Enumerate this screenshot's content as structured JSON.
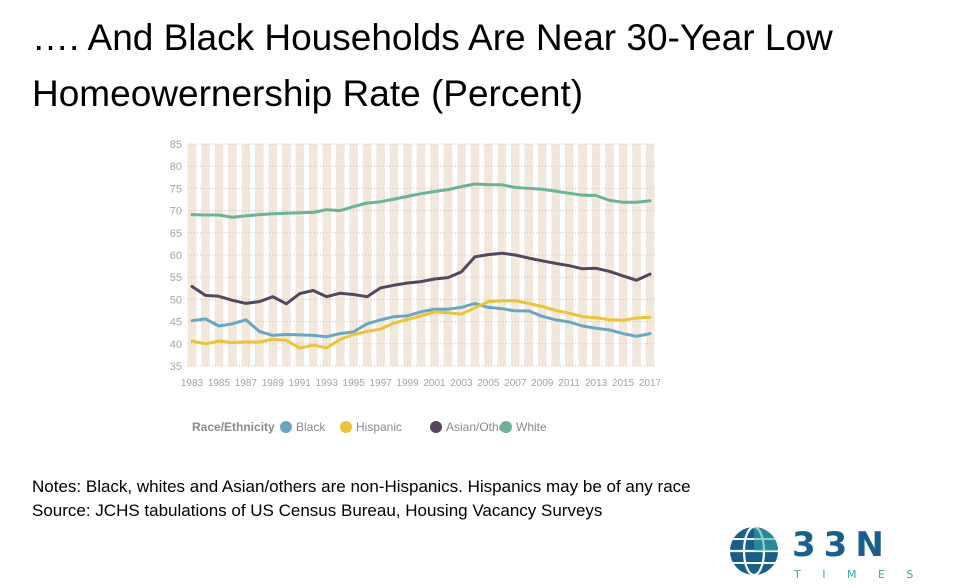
{
  "title": {
    "line1": "…. And Black Households Are Near 30-Year Low",
    "line2": "Homeowernership Rate (Percent)"
  },
  "notes": {
    "line1": "Notes: Black, whites and Asian/others are non-Hispanics. Hispanics may be of any race",
    "line2": "Source: JCHS tabulations of US Census Bureau, Housing Vacancy Surveys"
  },
  "logo": {
    "main": "33N",
    "sub": "T I M E S"
  },
  "colors": {
    "black_series": "#6aa6c3",
    "hispanic_series": "#ecc43a",
    "asian_series": "#54475d",
    "white_series": "#6ab29a",
    "band": "#f1e8db",
    "axis_text": "#a3a3a3",
    "logo_blue": "#1a5e8c",
    "logo_teal": "#36a9a1"
  },
  "chart_data": {
    "type": "line",
    "x": [
      1983,
      1984,
      1985,
      1986,
      1987,
      1988,
      1989,
      1990,
      1991,
      1992,
      1993,
      1994,
      1995,
      1996,
      1997,
      1998,
      1999,
      2000,
      2001,
      2002,
      2003,
      2004,
      2005,
      2006,
      2007,
      2008,
      2009,
      2010,
      2011,
      2012,
      2013,
      2014,
      2015,
      2016,
      2017
    ],
    "xticks": [
      "1983",
      "1985",
      "1987",
      "1989",
      "1991",
      "1993",
      "1995",
      "1997",
      "1999",
      "2001",
      "2003",
      "2005",
      "2007",
      "2009",
      "2011",
      "2013",
      "2015",
      "2017"
    ],
    "ylim": [
      35,
      85
    ],
    "yticks": [
      "35",
      "40",
      "45",
      "50",
      "55",
      "60",
      "65",
      "70",
      "75",
      "80",
      "85"
    ],
    "legend_title": "Race/Ethnicity",
    "series": [
      {
        "name": "Black",
        "color": "#6aa6c3",
        "values": [
          45.2,
          45.6,
          44.0,
          44.5,
          45.4,
          42.8,
          41.9,
          42.1,
          42.0,
          41.9,
          41.6,
          42.3,
          42.7,
          44.5,
          45.4,
          46.1,
          46.3,
          47.2,
          47.8,
          47.8,
          48.2,
          49.1,
          48.2,
          47.9,
          47.4,
          47.4,
          46.2,
          45.4,
          44.9,
          44.0,
          43.5,
          43.1,
          42.3,
          41.7,
          42.3
        ]
      },
      {
        "name": "Hispanic",
        "color": "#ecc43a",
        "values": [
          40.6,
          40.0,
          40.6,
          40.3,
          40.4,
          40.4,
          41.0,
          40.8,
          39.0,
          39.7,
          39.1,
          41.0,
          42.1,
          42.8,
          43.3,
          44.7,
          45.5,
          46.3,
          47.2,
          47.0,
          46.7,
          48.1,
          49.5,
          49.7,
          49.7,
          49.1,
          48.4,
          47.5,
          46.9,
          46.1,
          45.9,
          45.4,
          45.3,
          45.8,
          46.0
        ]
      },
      {
        "name": "Asian/Other",
        "color": "#54475d",
        "values": [
          52.9,
          50.9,
          50.7,
          49.8,
          49.1,
          49.5,
          50.6,
          49.0,
          51.3,
          52.0,
          50.6,
          51.4,
          51.1,
          50.6,
          52.6,
          53.2,
          53.7,
          54.0,
          54.6,
          54.9,
          56.2,
          59.6,
          60.1,
          60.4,
          60.0,
          59.3,
          58.7,
          58.1,
          57.6,
          56.9,
          57.0,
          56.3,
          55.3,
          54.3,
          55.7
        ]
      },
      {
        "name": "White",
        "color": "#6ab29a",
        "values": [
          69.1,
          69.0,
          69.0,
          68.5,
          68.8,
          69.1,
          69.3,
          69.4,
          69.5,
          69.6,
          70.2,
          70.0,
          70.9,
          71.7,
          72.0,
          72.6,
          73.2,
          73.8,
          74.3,
          74.7,
          75.4,
          76.0,
          75.8,
          75.8,
          75.2,
          75.0,
          74.8,
          74.4,
          73.9,
          73.5,
          73.4,
          72.3,
          71.9,
          71.9,
          72.2
        ]
      }
    ]
  }
}
